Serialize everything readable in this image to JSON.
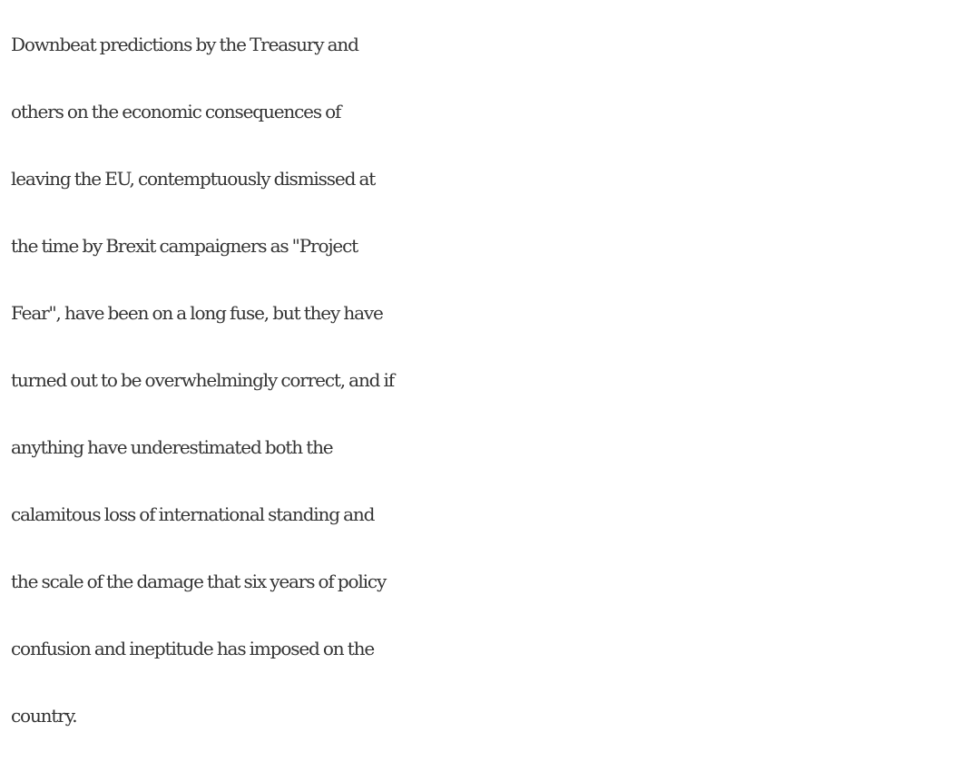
{
  "article": {
    "lines": [
      "Downbeat predictions by the Treasury and",
      "others on the economic consequences of",
      "leaving the EU, contemptuously dismissed at",
      "the time by Brexit campaigners as \"Project",
      "Fear\", have been on a long fuse, but they have",
      "turned out to be overwhelmingly correct, and if",
      "anything have underestimated both the",
      "calamitous loss of international standing and",
      "the scale of the damage that six years of policy",
      "confusion and ineptitude has imposed on the",
      "country."
    ]
  }
}
